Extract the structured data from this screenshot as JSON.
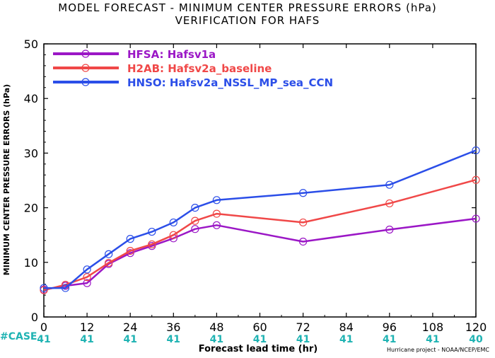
{
  "title_line1": "MODEL FORECAST - MINIMUM CENTER PRESSURE ERRORS (hPa)",
  "title_line2": "VERIFICATION FOR HAFS",
  "case_label": "#CASE",
  "credit": "Hurricane project - NOAA/NCEP/EMC",
  "colors": {
    "case_text": "#1fb3b3"
  },
  "chart_data": {
    "type": "line",
    "title": "MODEL FORECAST - MINIMUM CENTER PRESSURE ERRORS (hPa)",
    "subtitle": "VERIFICATION FOR HAFS",
    "xlabel": "Forecast lead time (hr)",
    "ylabel": "MINIMUM CENTER PRESSURE ERRORS (hPa)",
    "xlim": [
      0,
      120
    ],
    "ylim": [
      0,
      50
    ],
    "xticks": [
      0,
      12,
      24,
      36,
      48,
      60,
      72,
      84,
      96,
      108,
      120
    ],
    "yticks": [
      0,
      10,
      20,
      30,
      40,
      50
    ],
    "x": [
      0,
      6,
      12,
      18,
      24,
      30,
      36,
      42,
      48,
      72,
      96,
      120
    ],
    "legend_position": "top-left",
    "series": [
      {
        "name": "HFSA: Hafsv1a",
        "color": "#9b17c6",
        "values": [
          5.0,
          5.7,
          6.2,
          9.7,
          11.7,
          13.0,
          14.4,
          16.1,
          16.8,
          13.8,
          16.0,
          18.0
        ]
      },
      {
        "name": "H2AB: Hafsv2a_baseline",
        "color": "#f04848",
        "values": [
          4.9,
          5.9,
          7.3,
          9.9,
          12.1,
          13.3,
          15.0,
          17.6,
          18.9,
          17.3,
          20.8,
          25.1
        ]
      },
      {
        "name": "HNSO: Hafsv2a_NSSL_MP_sea_CCN",
        "color": "#2b4ee8",
        "values": [
          5.3,
          5.3,
          8.7,
          11.5,
          14.3,
          15.6,
          17.3,
          20.0,
          21.4,
          22.7,
          24.2,
          30.5
        ]
      }
    ],
    "case_counts": [
      {
        "x": 0,
        "n": "41"
      },
      {
        "x": 12,
        "n": "41"
      },
      {
        "x": 24,
        "n": "41"
      },
      {
        "x": 36,
        "n": "41"
      },
      {
        "x": 48,
        "n": "41"
      },
      {
        "x": 60,
        "n": "41"
      },
      {
        "x": 72,
        "n": "41"
      },
      {
        "x": 84,
        "n": "41"
      },
      {
        "x": 96,
        "n": "41"
      },
      {
        "x": 108,
        "n": "41"
      },
      {
        "x": 120,
        "n": "40"
      }
    ]
  }
}
